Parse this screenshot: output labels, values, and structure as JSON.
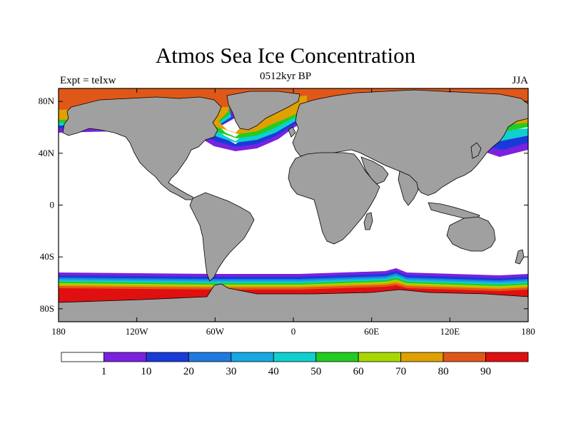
{
  "title": "Atmos Sea Ice Concentration",
  "subtitle": "0512kyr BP",
  "left_label": "Expt = teIxw",
  "right_label": "JJA",
  "map": {
    "projection": "cylindrical equidistant",
    "lon_range": [
      -180,
      180
    ],
    "lat_range": [
      -90,
      90
    ],
    "land_color": "#a0a0a0",
    "ocean_ice_free_color": "#ffffff",
    "lat_ticks": [
      {
        "lat": 80,
        "label": "80N"
      },
      {
        "lat": 40,
        "label": "40N"
      },
      {
        "lat": 0,
        "label": "0"
      },
      {
        "lat": -40,
        "label": "40S"
      },
      {
        "lat": -80,
        "label": "80S"
      }
    ],
    "lon_ticks": [
      {
        "lon": -180,
        "label": "180"
      },
      {
        "lon": -120,
        "label": "120W"
      },
      {
        "lon": -60,
        "label": "60W"
      },
      {
        "lon": 0,
        "label": "0"
      },
      {
        "lon": 60,
        "label": "60E"
      },
      {
        "lon": 120,
        "label": "120E"
      },
      {
        "lon": 180,
        "label": "180"
      }
    ]
  },
  "colorbar": {
    "colors": [
      "#ffffff",
      "#7a22e0",
      "#1a3ad8",
      "#1f7ae0",
      "#17a8e0",
      "#10cfcf",
      "#22cc22",
      "#a8d800",
      "#e0a000",
      "#e05818",
      "#e01010"
    ],
    "labels": [
      "1",
      "10",
      "20",
      "30",
      "40",
      "50",
      "60",
      "70",
      "80",
      "90"
    ]
  }
}
